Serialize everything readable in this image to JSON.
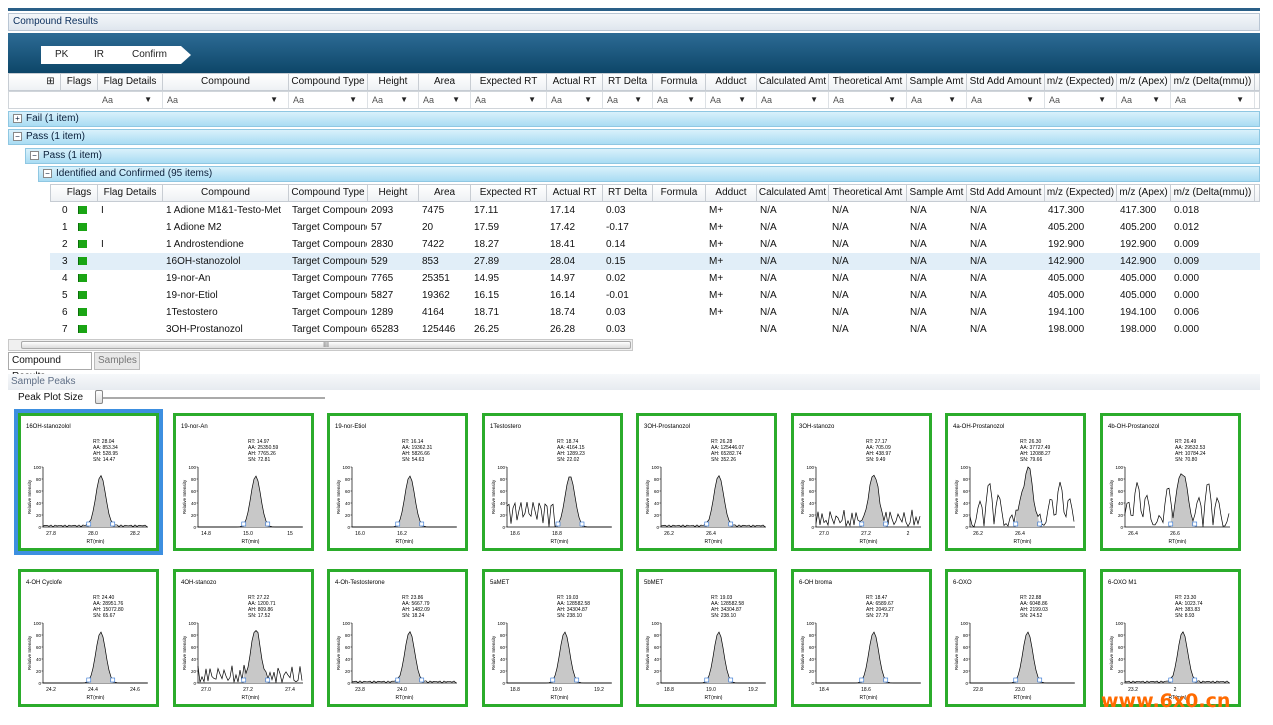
{
  "window": {
    "title": "Compound Results"
  },
  "breadcrumb": [
    "PK",
    "IR",
    "Confirm"
  ],
  "columns": [
    "Flags",
    "Flag Details",
    "Compound",
    "Compound Type",
    "Height",
    "Area",
    "Expected RT",
    "Actual RT",
    "RT Delta",
    "Formula",
    "Adduct",
    "Calculated Amt",
    "Theoretical Amt",
    "Sample Amt",
    "Std Add Amount",
    "m/z (Expected)",
    "m/z (Apex)",
    "m/z (Delta(mmu))"
  ],
  "filter_label": "Aa",
  "groups": {
    "fail": "Fail (1 item)",
    "pass": "Pass (1 item)",
    "pass_sub": "Pass (1 item)",
    "identified": "Identified and Confirmed (95 items)"
  },
  "rows": [
    {
      "idx": "0",
      "detail": "I",
      "compound": "1 Adione M1&1-Testo-Met",
      "type": "Target Compound",
      "height": "2093",
      "area": "7475",
      "exp_rt": "17.11",
      "act_rt": "17.14",
      "rt_delta": "0.03",
      "formula": "",
      "adduct": "M+",
      "calc": "N/A",
      "theo": "N/A",
      "samp": "N/A",
      "std": "N/A",
      "mz_exp": "417.300",
      "mz_apex": "417.300",
      "mz_delta": "0.018"
    },
    {
      "idx": "1",
      "detail": "",
      "compound": "1 Adione M2",
      "type": "Target Compound",
      "height": "57",
      "area": "20",
      "exp_rt": "17.59",
      "act_rt": "17.42",
      "rt_delta": "-0.17",
      "formula": "",
      "adduct": "M+",
      "calc": "N/A",
      "theo": "N/A",
      "samp": "N/A",
      "std": "N/A",
      "mz_exp": "405.200",
      "mz_apex": "405.200",
      "mz_delta": "0.012"
    },
    {
      "idx": "2",
      "detail": "I",
      "compound": "1 Androstendione",
      "type": "Target Compound",
      "height": "2830",
      "area": "7422",
      "exp_rt": "18.27",
      "act_rt": "18.41",
      "rt_delta": "0.14",
      "formula": "",
      "adduct": "M+",
      "calc": "N/A",
      "theo": "N/A",
      "samp": "N/A",
      "std": "N/A",
      "mz_exp": "192.900",
      "mz_apex": "192.900",
      "mz_delta": "0.009"
    },
    {
      "idx": "3",
      "detail": "",
      "compound": "16OH-stanozolol",
      "type": "Target Compound",
      "height": "529",
      "area": "853",
      "exp_rt": "27.89",
      "act_rt": "28.04",
      "rt_delta": "0.15",
      "formula": "",
      "adduct": "M+",
      "calc": "N/A",
      "theo": "N/A",
      "samp": "N/A",
      "std": "N/A",
      "mz_exp": "142.900",
      "mz_apex": "142.900",
      "mz_delta": "0.009"
    },
    {
      "idx": "4",
      "detail": "",
      "compound": "19-nor-An",
      "type": "Target Compound",
      "height": "7765",
      "area": "25351",
      "exp_rt": "14.95",
      "act_rt": "14.97",
      "rt_delta": "0.02",
      "formula": "",
      "adduct": "M+",
      "calc": "N/A",
      "theo": "N/A",
      "samp": "N/A",
      "std": "N/A",
      "mz_exp": "405.000",
      "mz_apex": "405.000",
      "mz_delta": "0.000"
    },
    {
      "idx": "5",
      "detail": "",
      "compound": "19-nor-Etiol",
      "type": "Target Compound",
      "height": "5827",
      "area": "19362",
      "exp_rt": "16.15",
      "act_rt": "16.14",
      "rt_delta": "-0.01",
      "formula": "",
      "adduct": "M+",
      "calc": "N/A",
      "theo": "N/A",
      "samp": "N/A",
      "std": "N/A",
      "mz_exp": "405.000",
      "mz_apex": "405.000",
      "mz_delta": "0.000"
    },
    {
      "idx": "6",
      "detail": "",
      "compound": "1Testostero",
      "type": "Target Compound",
      "height": "1289",
      "area": "4164",
      "exp_rt": "18.71",
      "act_rt": "18.74",
      "rt_delta": "0.03",
      "formula": "",
      "adduct": "M+",
      "calc": "N/A",
      "theo": "N/A",
      "samp": "N/A",
      "std": "N/A",
      "mz_exp": "194.100",
      "mz_apex": "194.100",
      "mz_delta": "0.006"
    },
    {
      "idx": "7",
      "detail": "",
      "compound": "3OH-Prostanozol",
      "type": "Target Compound",
      "height": "65283",
      "area": "125446",
      "exp_rt": "26.25",
      "act_rt": "26.28",
      "rt_delta": "0.03",
      "formula": "",
      "adduct": "",
      "calc": "N/A",
      "theo": "N/A",
      "samp": "N/A",
      "std": "N/A",
      "mz_exp": "198.000",
      "mz_apex": "198.000",
      "mz_delta": "0.000"
    }
  ],
  "scrollbar_glyph": "III",
  "tabs": [
    "Compound Results",
    "Samples"
  ],
  "sample_peaks": {
    "title": "Sample Peaks",
    "plot_size_label": "Peak Plot Size"
  },
  "plot_axis": {
    "ylabel": "Relative Intensity",
    "xlabel": "RT(min)",
    "yticks": [
      "100",
      "80",
      "60",
      "40",
      "20",
      "0"
    ]
  },
  "plots": [
    {
      "name": "16OH-stanozolol",
      "rt": "RT: 28.04",
      "aa": "AA: 853.34",
      "ah": "AH: 528.95",
      "sn": "SN: 14.47",
      "ticks": [
        "27.8",
        "28.0",
        "28.2"
      ],
      "peak": 0.55,
      "noise": "low"
    },
    {
      "name": "19-nor-An",
      "rt": "RT: 14.97",
      "aa": "AA: 25350.59",
      "ah": "AH: 7765.26",
      "sn": "SN: 72.81",
      "ticks": [
        "14.8",
        "15.0",
        "15"
      ],
      "peak": 0.55,
      "noise": "none"
    },
    {
      "name": "19-nor-Etiol",
      "rt": "RT: 16.14",
      "aa": "AA: 19362.31",
      "ah": "AH: 5826.66",
      "sn": "SN: 54.63",
      "ticks": [
        "16.0",
        "16.2",
        ""
      ],
      "peak": 0.55,
      "noise": "none"
    },
    {
      "name": "1Testostero",
      "rt": "RT: 18.74",
      "aa": "AA: 4164.15",
      "ah": "AH: 1289.23",
      "sn": "SN: 22.02",
      "ticks": [
        "18.6",
        "18.8",
        ""
      ],
      "peak": 0.6,
      "noise": "left"
    },
    {
      "name": "3OH-Prostanozol",
      "rt": "RT: 26.28",
      "aa": "AA: 125446.07",
      "ah": "AH: 65282.74",
      "sn": "SN: 352.26",
      "ticks": [
        "26.2",
        "26.4",
        ""
      ],
      "peak": 0.55,
      "noise": "low"
    },
    {
      "name": "3OH-stanozo",
      "rt": "RT: 27.17",
      "aa": "AA: 705.09",
      "ah": "AH: 438.97",
      "sn": "SN: 9.49",
      "ticks": [
        "27.0",
        "27.2",
        "2"
      ],
      "peak": 0.55,
      "noise": "high"
    },
    {
      "name": "4a-OH-Prostanozol",
      "rt": "RT: 26.30",
      "aa": "AA: 37727.49",
      "ah": "AH: 12088.27",
      "sn": "SN: 79.66",
      "ticks": [
        "26.2",
        "26.4",
        ""
      ],
      "peak": 0.55,
      "noise": "spikes"
    },
    {
      "name": "4b-OH-Prostanozol",
      "rt": "RT: 26.49",
      "aa": "AA: 29532.53",
      "ah": "AH: 10784.24",
      "sn": "SN: 70.80",
      "ticks": [
        "26.4",
        "26.6",
        ""
      ],
      "peak": 0.55,
      "noise": "spikes"
    },
    {
      "name": "4-OH Cyclofe",
      "rt": "RT: 24.40",
      "aa": "AA: 28951.76",
      "ah": "AH: 15072.80",
      "sn": "SN: 65.67",
      "ticks": [
        "24.2",
        "24.4",
        "24.6"
      ],
      "peak": 0.55,
      "noise": "none"
    },
    {
      "name": "4OH-stanozo",
      "rt": "RT: 27.22",
      "aa": "AA: 1200.71",
      "ah": "AH: 809.86",
      "sn": "SN: 17.52",
      "ticks": [
        "27.0",
        "27.2",
        "27.4"
      ],
      "peak": 0.55,
      "noise": "high"
    },
    {
      "name": "4-Oh-Testosterone",
      "rt": "RT: 23.86",
      "aa": "AA: 5667.79",
      "ah": "AH: 1482.09",
      "sn": "SN: 18.24",
      "ticks": [
        "23.8",
        "24.0",
        ""
      ],
      "peak": 0.55,
      "noise": "low"
    },
    {
      "name": "5aMET",
      "rt": "RT: 19.03",
      "aa": "AA: 128582.58",
      "ah": "AH: 34304.87",
      "sn": "SN: 238.10",
      "ticks": [
        "18.8",
        "19.0",
        "19.2"
      ],
      "peak": 0.55,
      "noise": "none"
    },
    {
      "name": "5bMET",
      "rt": "RT: 19.03",
      "aa": "AA: 128582.58",
      "ah": "AH: 34304.87",
      "sn": "SN: 238.10",
      "ticks": [
        "18.8",
        "19.0",
        "19.2"
      ],
      "peak": 0.55,
      "noise": "none"
    },
    {
      "name": "6-OH broma",
      "rt": "RT: 18.47",
      "aa": "AA: 6589.67",
      "ah": "AH: 2049.27",
      "sn": "SN: 27.79",
      "ticks": [
        "18.4",
        "18.6",
        ""
      ],
      "peak": 0.55,
      "noise": "none"
    },
    {
      "name": "6-OXO",
      "rt": "RT: 22.88",
      "aa": "AA: 6048.86",
      "ah": "AH: 2199.03",
      "sn": "SN: 24.52",
      "ticks": [
        "22.8",
        "23.0",
        ""
      ],
      "peak": 0.55,
      "noise": "none"
    },
    {
      "name": "6-OXO M1",
      "rt": "RT: 23.30",
      "aa": "AA: 1023.74",
      "ah": "AH: 383.83",
      "sn": "SN: 8.93",
      "ticks": [
        "23.2",
        "2",
        ""
      ],
      "peak": 0.55,
      "noise": "low"
    }
  ],
  "watermark": "www.6x0.cn",
  "colors": {
    "plot_border": "#2bac2b",
    "selection": "#3d8fe0",
    "header_blue": "#0d4668",
    "flag": "#1aa514",
    "watermark": "#ff6a00"
  }
}
